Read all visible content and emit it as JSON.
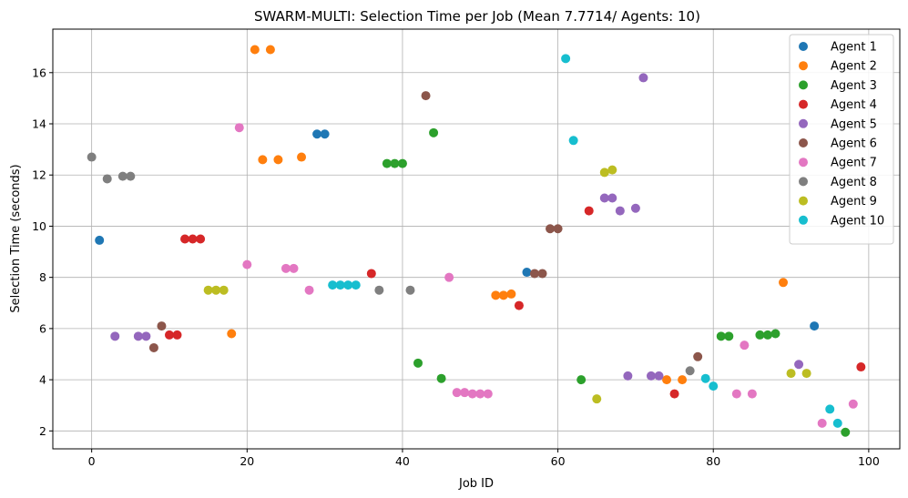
{
  "chart_data": {
    "type": "scatter",
    "title": "SWARM-MULTI: Selection Time per Job (Mean 7.7714/ Agents: 10)",
    "xlabel": "Job ID",
    "ylabel": "Selection Time (seconds)",
    "xlim": [
      -5,
      104
    ],
    "ylim": [
      1.3,
      17.7
    ],
    "xticks": [
      0,
      20,
      40,
      60,
      80,
      100
    ],
    "yticks": [
      2,
      4,
      6,
      8,
      10,
      12,
      14,
      16
    ],
    "grid": true,
    "legend_position": "top-right",
    "series": [
      {
        "name": "Agent 1",
        "color": "#1f77b4",
        "points": [
          [
            1,
            9.45
          ],
          [
            29,
            13.6
          ],
          [
            30,
            13.6
          ],
          [
            56,
            8.2
          ],
          [
            93,
            6.1
          ]
        ]
      },
      {
        "name": "Agent 2",
        "color": "#ff7f0e",
        "points": [
          [
            18,
            5.8
          ],
          [
            21,
            16.9
          ],
          [
            22,
            12.6
          ],
          [
            23,
            16.9
          ],
          [
            24,
            12.6
          ],
          [
            27,
            12.7
          ],
          [
            52,
            7.3
          ],
          [
            53,
            7.3
          ],
          [
            54,
            7.35
          ],
          [
            74,
            4.0
          ],
          [
            76,
            4.0
          ],
          [
            89,
            7.8
          ]
        ]
      },
      {
        "name": "Agent 3",
        "color": "#2ca02c",
        "points": [
          [
            38,
            12.45
          ],
          [
            39,
            12.45
          ],
          [
            40,
            12.45
          ],
          [
            42,
            4.65
          ],
          [
            44,
            13.65
          ],
          [
            45,
            4.05
          ],
          [
            63,
            4.0
          ],
          [
            81,
            5.7
          ],
          [
            82,
            5.7
          ],
          [
            86,
            5.75
          ],
          [
            87,
            5.75
          ],
          [
            88,
            5.8
          ],
          [
            97,
            1.95
          ]
        ]
      },
      {
        "name": "Agent 4",
        "color": "#d62728",
        "points": [
          [
            10,
            5.75
          ],
          [
            11,
            5.75
          ],
          [
            12,
            9.5
          ],
          [
            13,
            9.5
          ],
          [
            14,
            9.5
          ],
          [
            36,
            8.15
          ],
          [
            55,
            6.9
          ],
          [
            64,
            10.6
          ],
          [
            75,
            3.45
          ],
          [
            99,
            4.5
          ]
        ]
      },
      {
        "name": "Agent 5",
        "color": "#9467bd",
        "points": [
          [
            3,
            5.7
          ],
          [
            6,
            5.7
          ],
          [
            7,
            5.7
          ],
          [
            66,
            11.1
          ],
          [
            67,
            11.1
          ],
          [
            68,
            10.6
          ],
          [
            69,
            4.15
          ],
          [
            70,
            10.7
          ],
          [
            71,
            15.8
          ],
          [
            72,
            4.15
          ],
          [
            73,
            4.15
          ],
          [
            91,
            4.6
          ]
        ]
      },
      {
        "name": "Agent 6",
        "color": "#8c564b",
        "points": [
          [
            8,
            5.25
          ],
          [
            9,
            6.1
          ],
          [
            43,
            15.1
          ],
          [
            57,
            8.15
          ],
          [
            58,
            8.15
          ],
          [
            59,
            9.9
          ],
          [
            60,
            9.9
          ],
          [
            78,
            4.9
          ]
        ]
      },
      {
        "name": "Agent 7",
        "color": "#e377c2",
        "points": [
          [
            19,
            13.85
          ],
          [
            20,
            8.5
          ],
          [
            25,
            8.35
          ],
          [
            26,
            8.35
          ],
          [
            28,
            7.5
          ],
          [
            46,
            8.0
          ],
          [
            47,
            3.5
          ],
          [
            48,
            3.5
          ],
          [
            49,
            3.45
          ],
          [
            50,
            3.45
          ],
          [
            51,
            3.45
          ],
          [
            83,
            3.45
          ],
          [
            84,
            5.35
          ],
          [
            85,
            3.45
          ],
          [
            94,
            2.3
          ],
          [
            98,
            3.05
          ]
        ]
      },
      {
        "name": "Agent 8",
        "color": "#7f7f7f",
        "points": [
          [
            0,
            12.7
          ],
          [
            2,
            11.85
          ],
          [
            4,
            11.95
          ],
          [
            5,
            11.95
          ],
          [
            37,
            7.5
          ],
          [
            41,
            7.5
          ],
          [
            77,
            4.35
          ]
        ]
      },
      {
        "name": "Agent 9",
        "color": "#bcbd22",
        "points": [
          [
            15,
            7.5
          ],
          [
            16,
            7.5
          ],
          [
            17,
            7.5
          ],
          [
            65,
            3.25
          ],
          [
            66,
            12.1
          ],
          [
            67,
            12.2
          ],
          [
            90,
            4.25
          ],
          [
            92,
            4.25
          ]
        ]
      },
      {
        "name": "Agent 10",
        "color": "#17becf",
        "points": [
          [
            31,
            7.7
          ],
          [
            32,
            7.7
          ],
          [
            33,
            7.7
          ],
          [
            34,
            7.7
          ],
          [
            61,
            16.55
          ],
          [
            62,
            13.35
          ],
          [
            79,
            4.05
          ],
          [
            80,
            3.75
          ],
          [
            95,
            2.85
          ],
          [
            96,
            2.3
          ]
        ]
      }
    ]
  }
}
